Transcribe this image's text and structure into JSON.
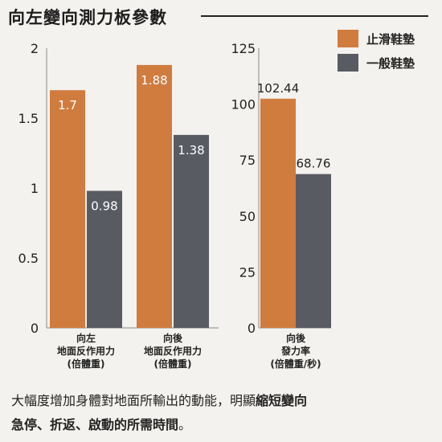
{
  "title": "向左變向測力板參數",
  "colors": {
    "series1": "#d07c3f",
    "series2": "#595b63",
    "axis": "#888888"
  },
  "legend": [
    {
      "name": "止滑鞋墊",
      "color": "#d07c3f"
    },
    {
      "name": "一般鞋墊",
      "color": "#595b63"
    }
  ],
  "chart_data": [
    {
      "type": "bar",
      "categories": [
        "向左\n地面反作用力\n(倍體重)",
        "向後\n地面反作用力\n(倍體重)"
      ],
      "series": [
        {
          "name": "止滑鞋墊",
          "values": [
            1.7,
            1.88
          ],
          "labels": [
            "1.7",
            "1.88"
          ]
        },
        {
          "name": "一般鞋墊",
          "values": [
            0.98,
            1.38
          ],
          "labels": [
            "0.98",
            "1.38"
          ]
        }
      ],
      "ylim": [
        0,
        2
      ],
      "yticks": [
        "0",
        "0.5",
        "1",
        "1.5",
        "2"
      ],
      "grid": false
    },
    {
      "type": "bar",
      "categories": [
        "向後\n發力率\n(倍體重/秒)"
      ],
      "series": [
        {
          "name": "止滑鞋墊",
          "values": [
            102.44
          ],
          "labels": [
            "102.44"
          ]
        },
        {
          "name": "一般鞋墊",
          "values": [
            68.76
          ],
          "labels": [
            "68.76"
          ]
        }
      ],
      "ylim": [
        0,
        125
      ],
      "yticks": [
        "0",
        "25",
        "50",
        "75",
        "100",
        "125"
      ],
      "grid": false
    }
  ],
  "caption": {
    "normal_1": "大幅度增加身體對地面所輸出的動能，明顯",
    "bold_1": "縮短變向",
    "bold_2": "急停、折返、啟動的所需時間",
    "normal_2": "。"
  }
}
